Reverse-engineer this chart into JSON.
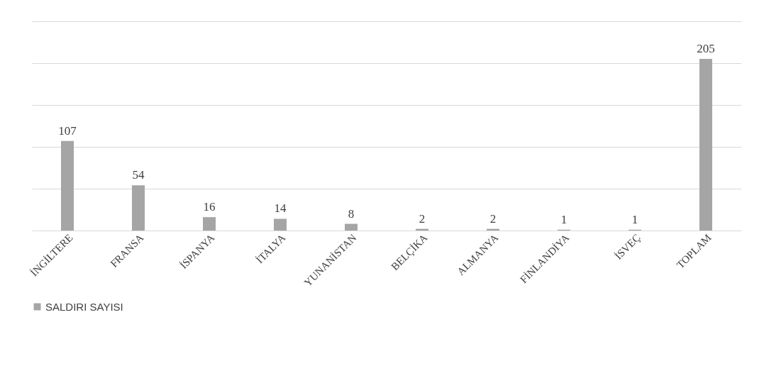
{
  "chart_data": {
    "type": "bar",
    "categories": [
      "İNGİLTERE",
      "FRANSA",
      "İSPANYA",
      "İTALYA",
      "YUNANİSTAN",
      "BELÇİKA",
      "ALMANYA",
      "FİNLANDİYA",
      "İSVEÇ",
      "TOPLAM"
    ],
    "series": [
      {
        "name": "SALDIRI SAYISI",
        "color": "#a5a5a5",
        "values": [
          107,
          54,
          16,
          14,
          8,
          2,
          2,
          1,
          1,
          205
        ]
      }
    ],
    "ylim": [
      0,
      250
    ],
    "yticks": [
      {
        "value": 0,
        "label": null
      },
      {
        "value": 50,
        "label": null
      },
      {
        "value": 100,
        "label": null
      },
      {
        "value": 150,
        "label": null
      },
      {
        "value": 200,
        "label": null
      },
      {
        "value": 250,
        "label": null
      }
    ],
    "grid": "y",
    "tick_labels": "x",
    "data_labels": true,
    "legend": "bottom"
  }
}
